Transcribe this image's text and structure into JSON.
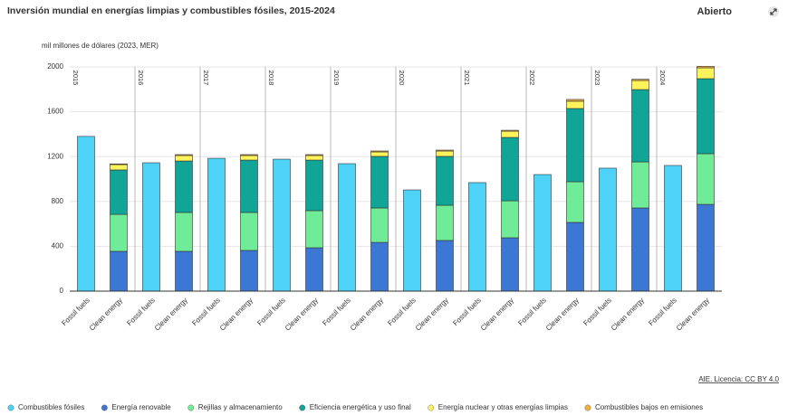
{
  "chart_data": {
    "type": "grouped-stacked-bar",
    "title": "Inversión mundial en energías limpias y combustibles fósiles, 2015-2024",
    "button": "Abierto",
    "y_label": "mil millones de dólares (2023, MER)",
    "source": "AIE. Licencia: CC BY 4.0",
    "years": [
      "2015",
      "2016",
      "2017",
      "2018",
      "2019",
      "2020",
      "2021",
      "2022",
      "2023",
      "2024"
    ],
    "ylim": [
      0,
      2000
    ],
    "yticks": [
      0,
      400,
      800,
      1200,
      1600,
      2000
    ],
    "grid": true,
    "groups": [
      {
        "label": "Fossil fuels",
        "series": [
          {
            "name": "Combustibles fósiles",
            "color": "#4fd2f7",
            "values": [
              1380,
              1145,
              1185,
              1177,
              1137,
              903,
              968,
              1040,
              1097,
              1121
            ]
          }
        ]
      },
      {
        "label": "Clean energy",
        "series": [
          {
            "name": "Energía renovable",
            "color": "#3d77d4",
            "values": [
              355,
              355,
              363,
              387,
              435,
              452,
              476,
              613,
              742,
              774
            ]
          },
          {
            "name": "Rejillas y almacenamiento",
            "color": "#70eb98",
            "values": [
              330,
              347,
              339,
              331,
              307,
              314,
              330,
              363,
              411,
              452
            ]
          },
          {
            "name": "Eficiencia energética y uso final",
            "color": "#10a596",
            "values": [
              396,
              459,
              467,
              451,
              460,
              436,
              565,
              653,
              645,
              669
            ]
          },
          {
            "name": "Energía nuclear y otras energías limpias",
            "color": "#fff35c",
            "values": [
              48,
              49,
              41,
              41,
              40,
              48,
              56,
              65,
              81,
              97
            ]
          },
          {
            "name": "Combustibles bajos en emisiones",
            "color": "#f0b040",
            "values": [
              6,
              8,
              8,
              8,
              8,
              8,
              8,
              16,
              11,
              13
            ]
          }
        ]
      }
    ]
  }
}
